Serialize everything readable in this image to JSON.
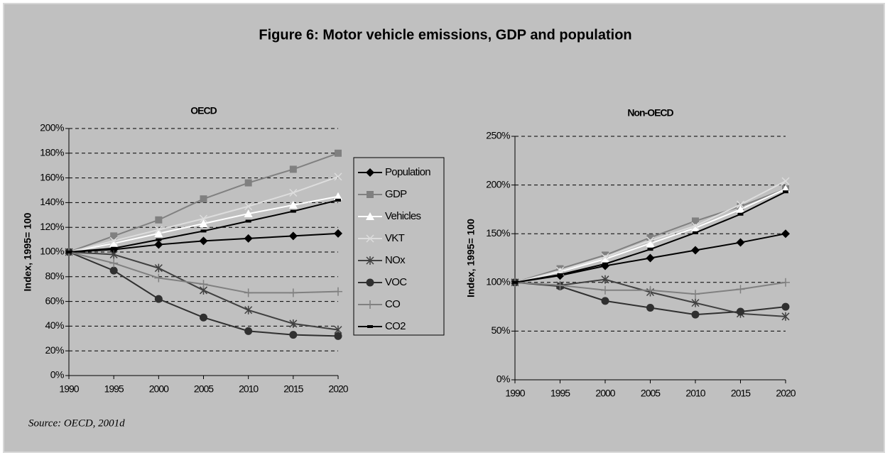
{
  "figure_title": "Figure 6: Motor vehicle emissions, GDP and population",
  "source": "Source: OECD, 2001d",
  "chart_data": [
    {
      "type": "line",
      "title": "OECD",
      "y_label": "Index, 1995= 100",
      "legend": "right",
      "grid": true,
      "x": [
        1990,
        1995,
        2000,
        2005,
        2010,
        2015,
        2020
      ],
      "xlim": [
        1990,
        2020
      ],
      "xticks": [
        1990,
        1995,
        2000,
        2005,
        2010,
        2015,
        2020
      ],
      "ylim": [
        0,
        200
      ],
      "yticks": [
        {
          "value": 0,
          "label": "0%"
        },
        {
          "value": 20,
          "label": "20%"
        },
        {
          "value": 40,
          "label": "40%"
        },
        {
          "value": 60,
          "label": "60%"
        },
        {
          "value": 80,
          "label": "80%"
        },
        {
          "value": 100,
          "label": "100%"
        },
        {
          "value": 120,
          "label": "120%"
        },
        {
          "value": 140,
          "label": "140%"
        },
        {
          "value": 160,
          "label": "160%"
        },
        {
          "value": 180,
          "label": "180%"
        },
        {
          "value": 200,
          "label": "200%"
        }
      ],
      "series": [
        {
          "name": "Population",
          "color": "#000000",
          "marker": "diamond",
          "values": [
            100,
            102,
            106,
            109,
            111,
            113,
            115
          ]
        },
        {
          "name": "GDP",
          "color": "#808080",
          "marker": "square",
          "values": [
            100,
            113,
            126,
            143,
            156,
            167,
            180
          ]
        },
        {
          "name": "Vehicles",
          "color": "#ffffff",
          "marker": "triangle",
          "values": [
            100,
            107,
            115,
            123,
            131,
            138,
            145
          ]
        },
        {
          "name": "VKT",
          "color": "#dddddd",
          "marker": "x",
          "values": [
            100,
            109,
            118,
            127,
            137,
            148,
            161
          ]
        },
        {
          "name": "NOx",
          "color": "#404040",
          "marker": "star",
          "values": [
            100,
            98,
            87,
            69,
            53,
            42,
            37
          ]
        },
        {
          "name": "VOC",
          "color": "#303030",
          "marker": "circle",
          "values": [
            100,
            85,
            62,
            47,
            36,
            33,
            32
          ]
        },
        {
          "name": "CO",
          "color": "#808080",
          "marker": "plus",
          "values": [
            100,
            91,
            79,
            74,
            67,
            67,
            68
          ]
        },
        {
          "name": "CO2",
          "color": "#000000",
          "marker": "dash",
          "values": [
            100,
            103,
            110,
            117,
            125,
            133,
            142
          ]
        }
      ]
    },
    {
      "type": "line",
      "title": "Non-OECD",
      "y_label": "Index, 1995= 100",
      "grid": true,
      "x": [
        1990,
        1995,
        2000,
        2005,
        2010,
        2015,
        2020
      ],
      "xlim": [
        1990,
        2020
      ],
      "xticks": [
        1990,
        1995,
        2000,
        2005,
        2010,
        2015,
        2020
      ],
      "ylim": [
        0,
        250
      ],
      "yticks": [
        {
          "value": 0,
          "label": "0%"
        },
        {
          "value": 50,
          "label": "50%"
        },
        {
          "value": 100,
          "label": "100%"
        },
        {
          "value": 150,
          "label": "150%"
        },
        {
          "value": 200,
          "label": "200%"
        },
        {
          "value": 250,
          "label": "250%"
        }
      ],
      "series": [
        {
          "color": "#000000",
          "marker": "diamond",
          "values": [
            100,
            107,
            117,
            125,
            133,
            141,
            150
          ]
        },
        {
          "color": "#808080",
          "marker": "square",
          "values": [
            100,
            114,
            128,
            146,
            163,
            178,
            196
          ]
        },
        {
          "color": "#ffffff",
          "marker": "triangle",
          "values": [
            100,
            111,
            124,
            140,
            156,
            175,
            196
          ]
        },
        {
          "color": "#dddddd",
          "marker": "x",
          "values": [
            100,
            112,
            126,
            143,
            158,
            180,
            204
          ]
        },
        {
          "color": "#404040",
          "marker": "star",
          "values": [
            100,
            97,
            103,
            90,
            79,
            68,
            65
          ]
        },
        {
          "color": "#303030",
          "marker": "circle",
          "values": [
            100,
            96,
            81,
            74,
            67,
            70,
            75
          ]
        },
        {
          "color": "#808080",
          "marker": "plus",
          "values": [
            100,
            97,
            92,
            92,
            88,
            93,
            100
          ]
        },
        {
          "color": "#000000",
          "marker": "dash",
          "values": [
            100,
            108,
            119,
            134,
            151,
            170,
            193
          ]
        }
      ]
    }
  ]
}
